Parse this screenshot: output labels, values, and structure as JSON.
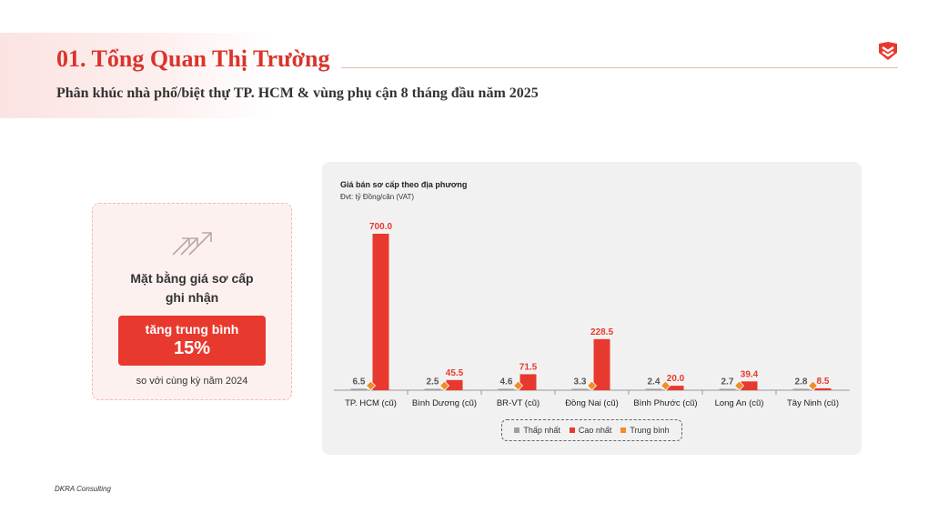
{
  "header": {
    "title": "01. Tổng Quan Thị Trường",
    "subtitle": "Phân khúc nhà phố/biệt thự TP. HCM & vùng phụ cận 8 tháng đầu năm 2025"
  },
  "summary_card": {
    "line1": "Mặt bằng giá sơ cấp",
    "line2": "ghi nhận",
    "highlight_label": "tăng trung bình",
    "highlight_value": "15%",
    "footnote": "so với cùng kỳ năm 2024"
  },
  "chart_data": {
    "type": "bar",
    "title": "Giá bán sơ cấp theo địa phương",
    "subtitle": "Đvt: tỷ Đồng/căn (VAT)",
    "categories": [
      "TP. HCM (cũ)",
      "Bình Dương (cũ)",
      "BR-VT (cũ)",
      "Đồng Nai (cũ)",
      "Bình Phước (cũ)",
      "Long An (cũ)",
      "Tây Ninh (cũ)"
    ],
    "series": [
      {
        "name": "Thấp nhất",
        "values": [
          6.5,
          2.5,
          4.6,
          3.3,
          2.4,
          2.7,
          2.8
        ],
        "color": "#9e9e9e"
      },
      {
        "name": "Cao nhất",
        "values": [
          700.0,
          45.5,
          71.5,
          228.5,
          20.0,
          39.4,
          8.5
        ],
        "color": "#e8392e"
      },
      {
        "name": "Trung bình",
        "type": "marker",
        "values": [
          null,
          null,
          null,
          null,
          null,
          null,
          null
        ],
        "color": "#f28c28"
      }
    ],
    "ylim": [
      0,
      700
    ],
    "legend": "bottom",
    "grid": false
  },
  "colors": {
    "accent": "#e8392e",
    "title_red": "#d9342b",
    "marker_orange": "#f28c28",
    "panel_bg": "#f1f1f1"
  },
  "footer": {
    "brand": "DKRA Consulting"
  }
}
